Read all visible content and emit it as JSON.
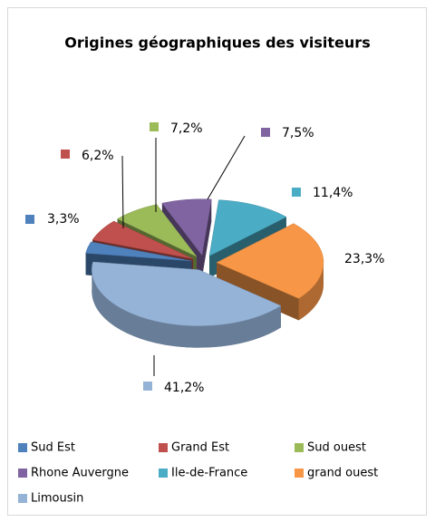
{
  "chart_data": {
    "type": "pie3d",
    "title": "Origines géographiques des visiteurs",
    "categories": [
      "Sud Est",
      "Grand Est",
      "Sud ouest",
      "Rhone Auvergne",
      "Ile-de-France",
      "grand ouest",
      "Limousin"
    ],
    "values": [
      3.3,
      6.2,
      7.2,
      7.5,
      11.4,
      23.3,
      41.2
    ],
    "value_labels": [
      "3,3%",
      "6,2%",
      "7,2%",
      "7,5%",
      "11,4%",
      "23,3%",
      "41,2%"
    ],
    "colors": [
      "#4f81bd",
      "#c0504d",
      "#9bbb59",
      "#8064a2",
      "#4bacc6",
      "#f79646",
      "#95b3d7"
    ],
    "legend": "bottom"
  }
}
